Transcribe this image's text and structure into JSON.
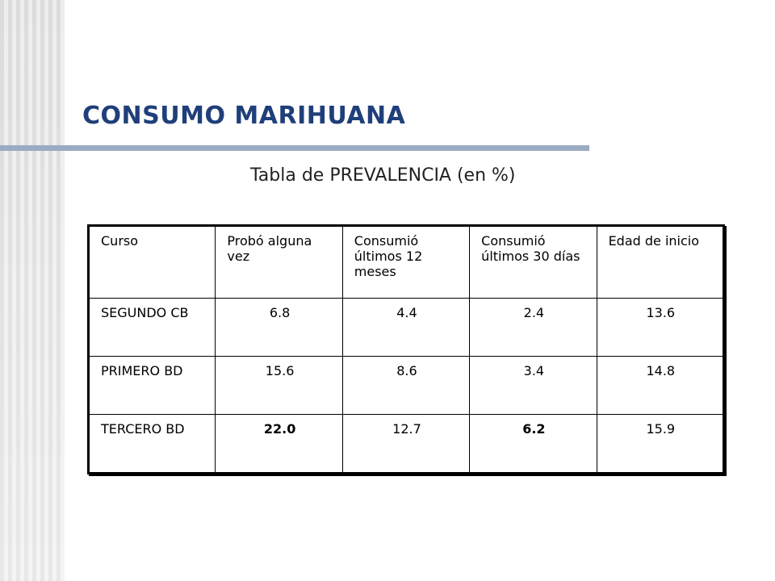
{
  "slide": {
    "title": "CONSUMO MARIHUANA",
    "subtitle": "Tabla  de PREVALENCIA (en %)"
  },
  "table": {
    "headers": [
      "Curso",
      "Probó alguna vez",
      "Consumió últimos 12 meses",
      "Consumió últimos 30 días",
      "Edad de inicio"
    ],
    "rows": [
      [
        "SEGUNDO CB",
        "6.8",
        "4.4",
        "2.4",
        "13.6"
      ],
      [
        "PRIMERO BD",
        "15.6",
        "8.6",
        "3.4",
        "14.8"
      ],
      [
        "TERCERO BD",
        "22.0",
        "12.7",
        "6.2",
        "15.9"
      ]
    ]
  },
  "colors": {
    "title": "#1f3f7a",
    "rule": "#9aabc4",
    "stripes": "#dcdcdc"
  }
}
